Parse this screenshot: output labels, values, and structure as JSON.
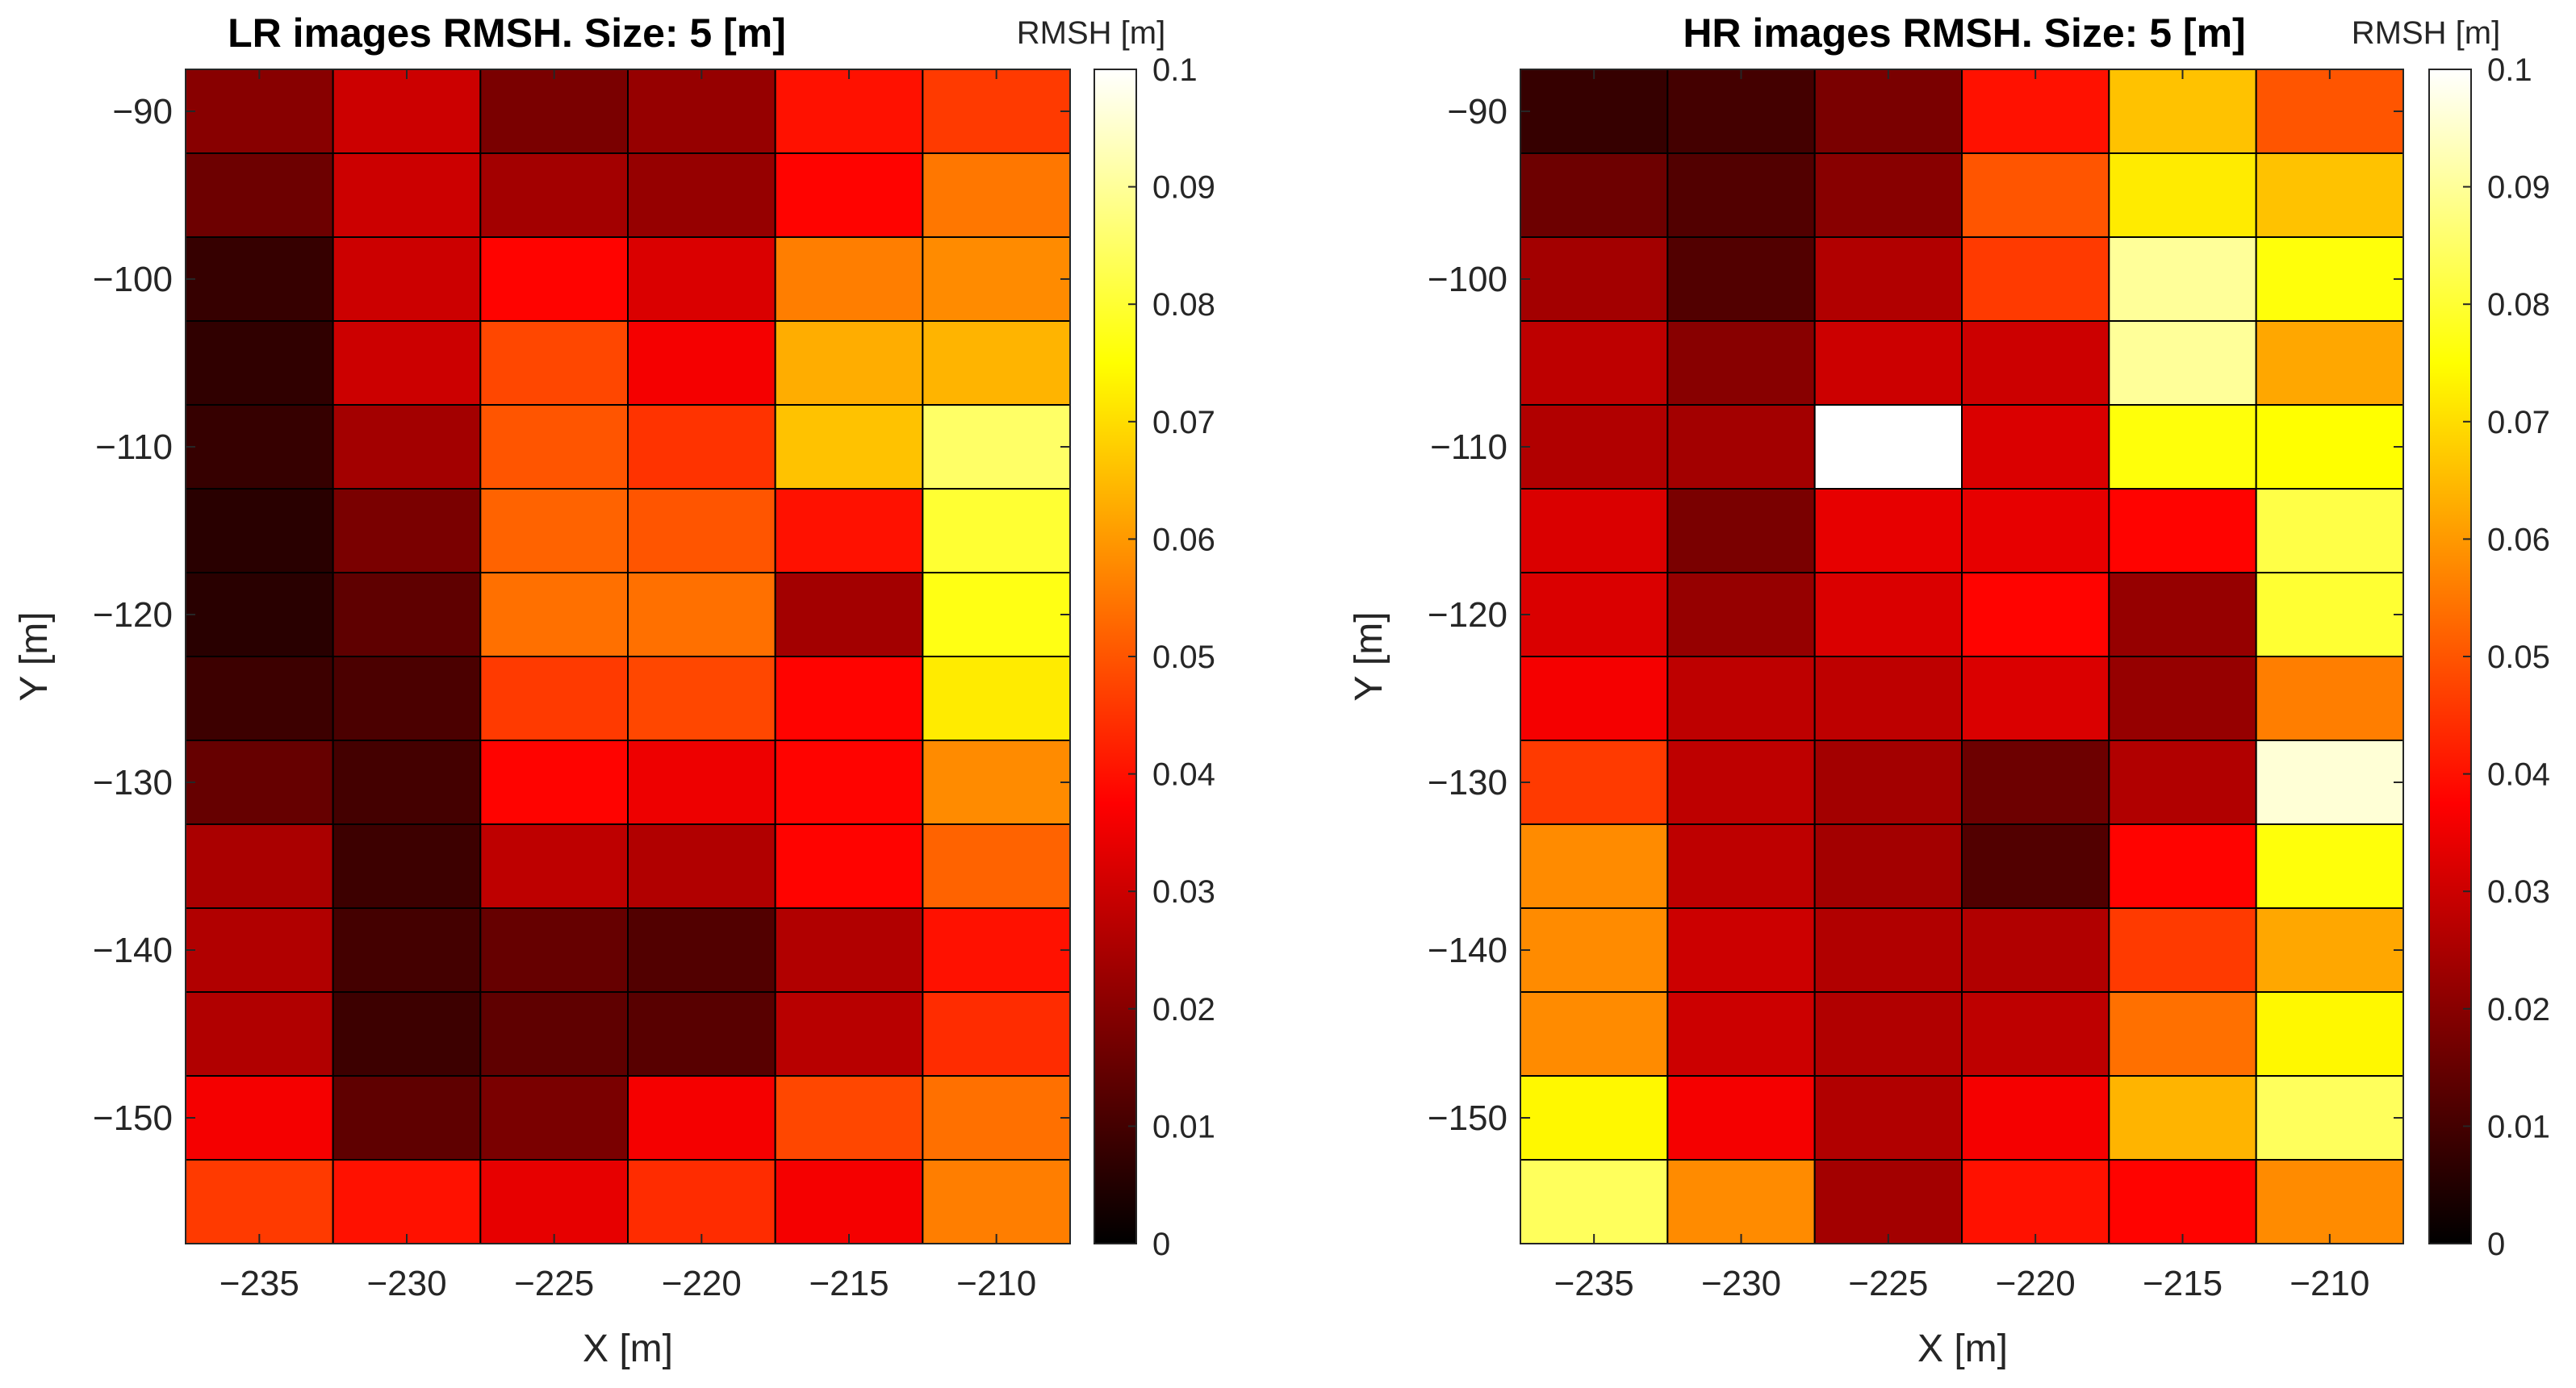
{
  "chart_data": [
    {
      "type": "heatmap",
      "title": "LR images RMSH. Size: 5 [m]",
      "xlabel": "X [m]",
      "ylabel": "Y [m]",
      "x_ticks": [
        "−235",
        "−230",
        "−225",
        "−220",
        "−215",
        "−210"
      ],
      "y_ticks": [
        "−90",
        "−100",
        "−110",
        "−120",
        "−130",
        "−140",
        "−150"
      ],
      "x_centers": [
        -235,
        -230,
        -225,
        -220,
        -215,
        -210
      ],
      "y_centers": [
        -90,
        -95,
        -100,
        -105,
        -110,
        -115,
        -120,
        -125,
        -130,
        -135,
        -140,
        -145,
        -150,
        -155
      ],
      "colorbar": {
        "label": "RMSH [m]",
        "range": [
          0,
          0.1
        ],
        "ticks": [
          "0",
          "0.01",
          "0.02",
          "0.03",
          "0.04",
          "0.05",
          "0.06",
          "0.07",
          "0.08",
          "0.09",
          "0.1"
        ],
        "colormap": "hot"
      },
      "values": [
        [
          0.02,
          0.03,
          0.018,
          0.022,
          0.04,
          0.046
        ],
        [
          0.016,
          0.03,
          0.024,
          0.022,
          0.038,
          0.055
        ],
        [
          0.008,
          0.03,
          0.038,
          0.032,
          0.056,
          0.058
        ],
        [
          0.007,
          0.03,
          0.048,
          0.036,
          0.063,
          0.064
        ],
        [
          0.008,
          0.024,
          0.05,
          0.045,
          0.066,
          0.085
        ],
        [
          0.006,
          0.018,
          0.052,
          0.05,
          0.04,
          0.08
        ],
        [
          0.006,
          0.014,
          0.054,
          0.054,
          0.024,
          0.077
        ],
        [
          0.009,
          0.011,
          0.046,
          0.048,
          0.038,
          0.072
        ],
        [
          0.015,
          0.01,
          0.038,
          0.035,
          0.038,
          0.058
        ],
        [
          0.025,
          0.009,
          0.028,
          0.026,
          0.038,
          0.052
        ],
        [
          0.026,
          0.01,
          0.015,
          0.012,
          0.026,
          0.04
        ],
        [
          0.026,
          0.009,
          0.014,
          0.013,
          0.027,
          0.044
        ],
        [
          0.036,
          0.014,
          0.018,
          0.036,
          0.048,
          0.054
        ],
        [
          0.046,
          0.04,
          0.034,
          0.044,
          0.036,
          0.056
        ]
      ]
    },
    {
      "type": "heatmap",
      "title": "HR images RMSH. Size: 5 [m]",
      "xlabel": "X [m]",
      "ylabel": "Y [m]",
      "x_ticks": [
        "−235",
        "−230",
        "−225",
        "−220",
        "−215",
        "−210"
      ],
      "y_ticks": [
        "−90",
        "−100",
        "−110",
        "−120",
        "−130",
        "−140",
        "−150"
      ],
      "x_centers": [
        -235,
        -230,
        -225,
        -220,
        -215,
        -210
      ],
      "y_centers": [
        -90,
        -95,
        -100,
        -105,
        -110,
        -115,
        -120,
        -125,
        -130,
        -135,
        -140,
        -145,
        -150,
        -155
      ],
      "colorbar": {
        "label": "RMSH [m]",
        "range": [
          0,
          0.1
        ],
        "ticks": [
          "0",
          "0.01",
          "0.02",
          "0.03",
          "0.04",
          "0.05",
          "0.06",
          "0.07",
          "0.08",
          "0.09",
          "0.1"
        ],
        "colormap": "hot"
      },
      "values": [
        [
          0.008,
          0.01,
          0.018,
          0.04,
          0.066,
          0.05
        ],
        [
          0.016,
          0.012,
          0.02,
          0.05,
          0.072,
          0.066
        ],
        [
          0.024,
          0.012,
          0.026,
          0.046,
          0.09,
          0.076
        ],
        [
          0.028,
          0.02,
          0.03,
          0.03,
          0.09,
          0.062
        ],
        [
          0.026,
          0.024,
          0.1,
          0.032,
          0.076,
          0.075
        ],
        [
          0.032,
          0.018,
          0.034,
          0.034,
          0.038,
          0.082
        ],
        [
          0.032,
          0.022,
          0.032,
          0.038,
          0.022,
          0.08
        ],
        [
          0.036,
          0.028,
          0.028,
          0.032,
          0.022,
          0.056
        ],
        [
          0.046,
          0.028,
          0.024,
          0.016,
          0.026,
          0.096
        ],
        [
          0.058,
          0.028,
          0.024,
          0.012,
          0.038,
          0.076
        ],
        [
          0.058,
          0.03,
          0.026,
          0.026,
          0.046,
          0.062
        ],
        [
          0.058,
          0.03,
          0.026,
          0.028,
          0.054,
          0.074
        ],
        [
          0.074,
          0.036,
          0.026,
          0.036,
          0.064,
          0.084
        ],
        [
          0.084,
          0.058,
          0.024,
          0.04,
          0.038,
          0.058
        ]
      ]
    }
  ]
}
